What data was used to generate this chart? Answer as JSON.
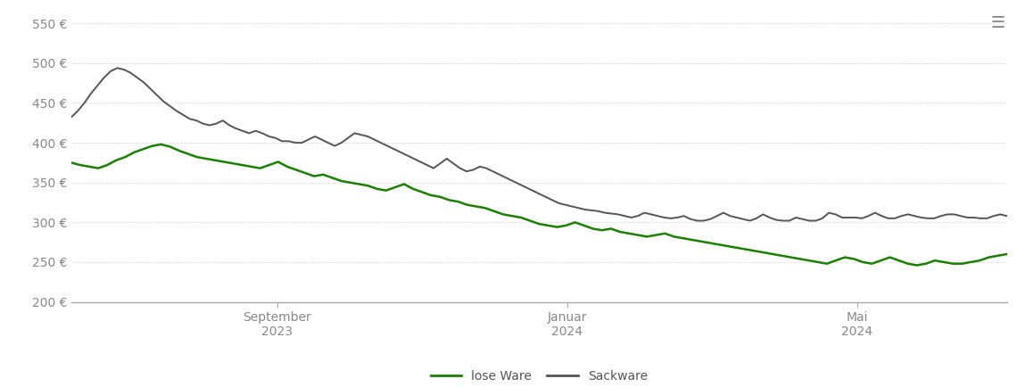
{
  "background_color": "#ffffff",
  "grid_color": "#cccccc",
  "axis_color": "#333333",
  "tick_label_color": "#888888",
  "legend_label_color": "#555555",
  "lose_ware_color": "#1a8000",
  "sackware_color": "#555555",
  "ylim": [
    200,
    560
  ],
  "yticks": [
    200,
    250,
    300,
    350,
    400,
    450,
    500,
    550
  ],
  "legend_labels": [
    "lose Ware",
    "Sackware"
  ],
  "xtick_labels": [
    [
      "September",
      "2023"
    ],
    [
      "Januar",
      "2024"
    ],
    [
      "Mai",
      "2024"
    ]
  ],
  "xtick_positions": [
    0.22,
    0.53,
    0.84
  ],
  "lose_ware": [
    375,
    372,
    370,
    368,
    372,
    378,
    382,
    388,
    392,
    396,
    398,
    395,
    390,
    386,
    382,
    380,
    378,
    376,
    374,
    372,
    370,
    368,
    372,
    376,
    370,
    366,
    362,
    358,
    360,
    356,
    352,
    350,
    348,
    346,
    342,
    340,
    344,
    348,
    342,
    338,
    334,
    332,
    328,
    326,
    322,
    320,
    318,
    314,
    310,
    308,
    306,
    302,
    298,
    296,
    294,
    296,
    300,
    296,
    292,
    290,
    292,
    288,
    286,
    284,
    282,
    284,
    286,
    282,
    280,
    278,
    276,
    274,
    272,
    270,
    268,
    266,
    264,
    262,
    260,
    258,
    256,
    254,
    252,
    250,
    248,
    252,
    256,
    254,
    250,
    248,
    252,
    256,
    252,
    248,
    246,
    248,
    252,
    250,
    248,
    248,
    250,
    252,
    256,
    258,
    260
  ],
  "sackware": [
    432,
    440,
    450,
    462,
    472,
    482,
    490,
    494,
    492,
    488,
    482,
    476,
    468,
    460,
    452,
    446,
    440,
    435,
    430,
    428,
    424,
    422,
    424,
    428,
    422,
    418,
    415,
    412,
    415,
    412,
    408,
    406,
    402,
    402,
    400,
    400,
    404,
    408,
    404,
    400,
    396,
    400,
    406,
    412,
    410,
    408,
    404,
    400,
    396,
    392,
    388,
    384,
    380,
    376,
    372,
    368,
    374,
    380,
    374,
    368,
    364,
    366,
    370,
    368,
    364,
    360,
    356,
    352,
    348,
    344,
    340,
    336,
    332,
    328,
    324,
    322,
    320,
    318,
    316,
    315,
    314,
    312,
    311,
    310,
    308,
    306,
    308,
    312,
    310,
    308,
    306,
    305,
    306,
    308,
    304,
    302,
    302,
    304,
    308,
    312,
    308,
    306,
    304,
    302,
    305,
    310,
    306,
    303,
    302,
    302,
    306,
    304,
    302,
    302,
    305,
    312,
    310,
    306,
    306,
    306,
    305,
    308,
    312,
    308,
    305,
    305,
    308,
    310,
    308,
    306,
    305,
    305,
    308,
    310,
    310,
    308,
    306,
    306,
    305,
    305,
    308,
    310,
    308
  ]
}
